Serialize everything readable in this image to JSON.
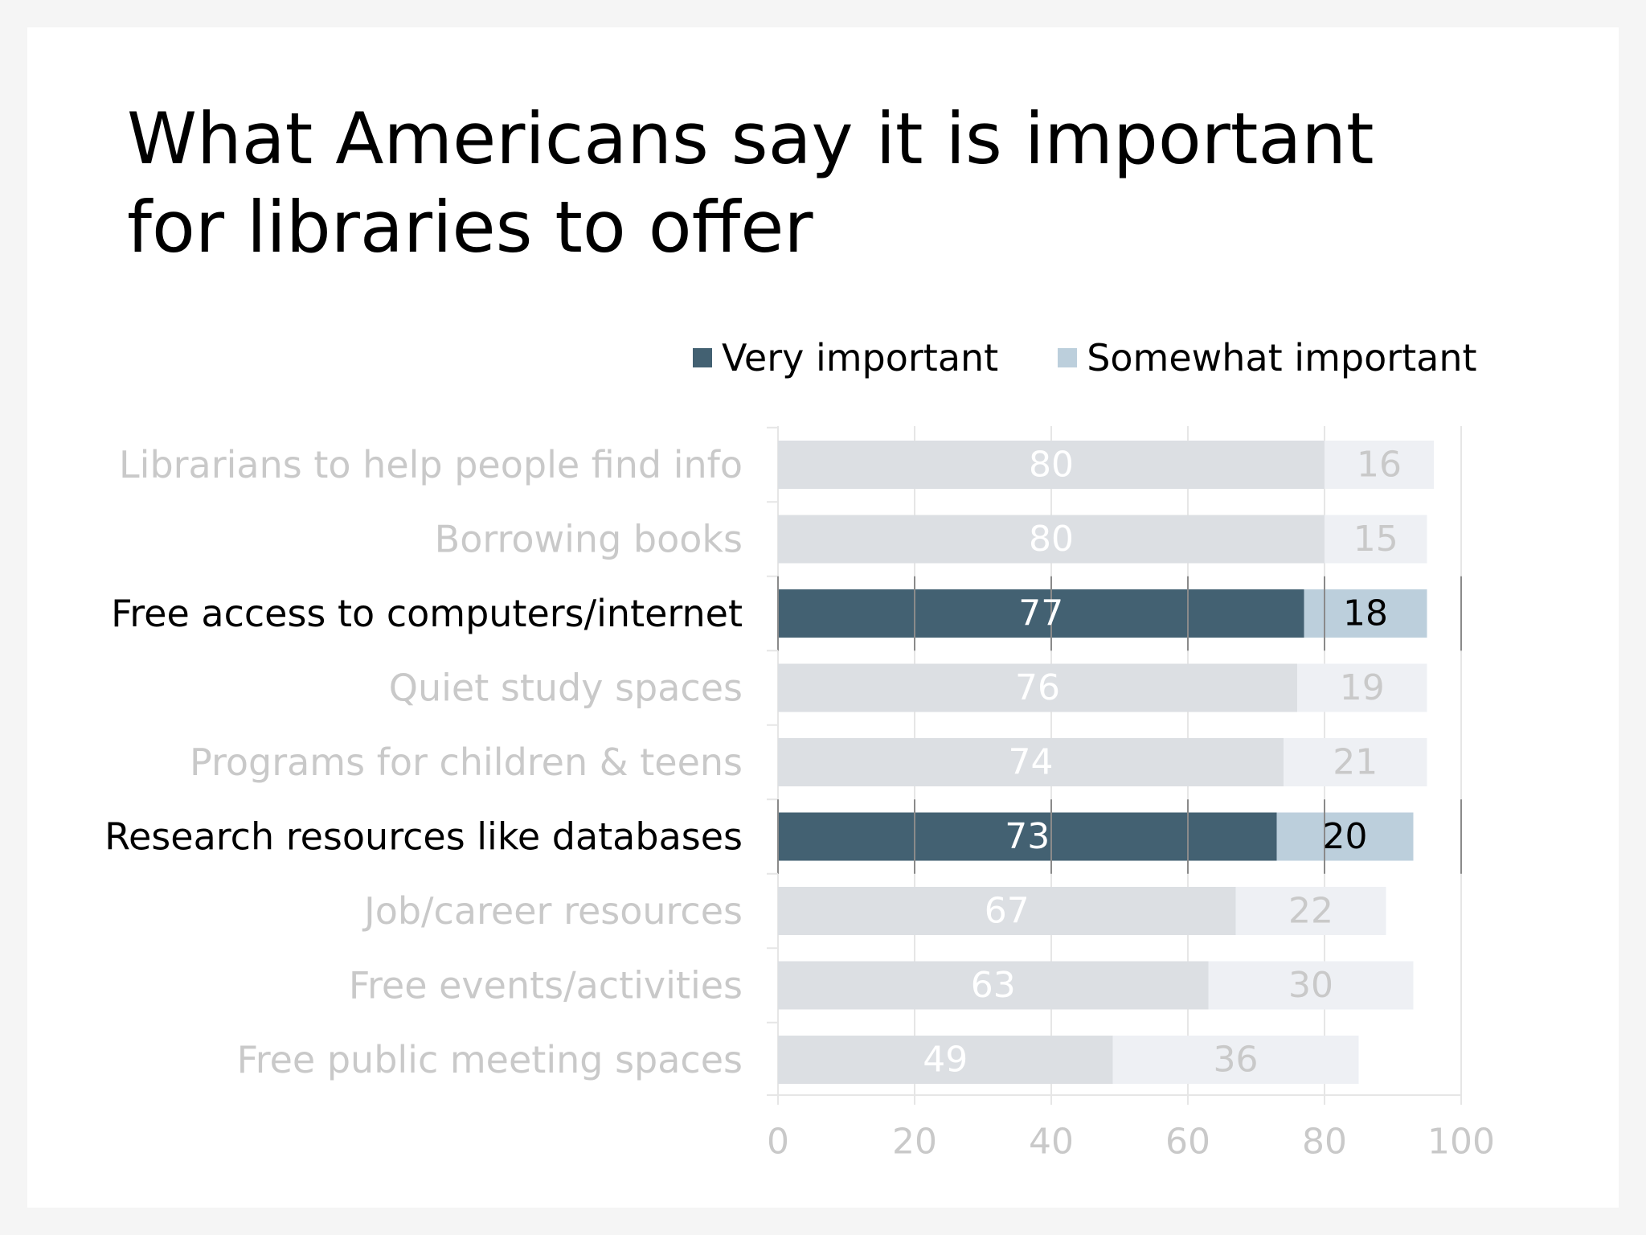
{
  "title_lines": [
    "What Americans say it is important",
    "for libraries to offer"
  ],
  "colors": {
    "very": "#436172",
    "somewhat": "#bccfdc",
    "very_dim": "#dcdfe3",
    "somewhat_dim": "#eef0f4",
    "text_dim": "#c9c9c9",
    "text": "#000000",
    "grid": "#e6e6e6",
    "grid_dark": "#8a8a8a"
  },
  "chart_data": {
    "type": "bar",
    "orientation": "horizontal",
    "stacked": true,
    "categories": [
      "Librarians to help people find info",
      "Borrowing books",
      "Free access to computers/internet",
      "Quiet study spaces",
      "Programs for children &  teens",
      "Research resources like databases",
      "Job/career resources",
      "Free events/activities",
      "Free public meeting spaces"
    ],
    "series": [
      {
        "name": "Very important",
        "values": [
          80,
          80,
          77,
          76,
          74,
          73,
          67,
          63,
          49
        ]
      },
      {
        "name": "Somewhat important",
        "values": [
          16,
          15,
          18,
          19,
          21,
          20,
          22,
          30,
          36
        ]
      }
    ],
    "highlighted": [
      "Free access to computers/internet",
      "Research resources like databases"
    ],
    "xlim": [
      0,
      100
    ],
    "xticks": [
      0,
      20,
      40,
      60,
      80,
      100
    ],
    "grid": true,
    "legend_position": "top-right"
  }
}
